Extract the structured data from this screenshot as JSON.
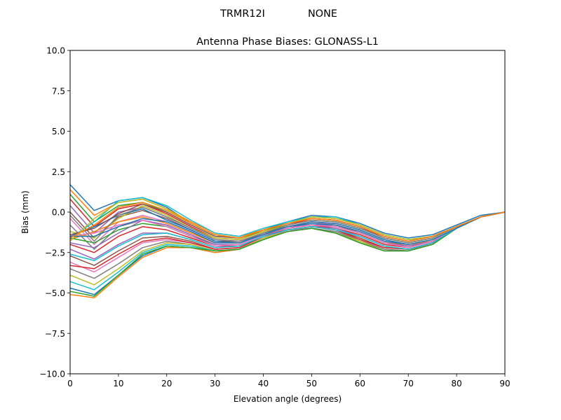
{
  "figure": {
    "suptitle_left": "TRMR12I",
    "suptitle_right": "NONE"
  },
  "chart_data": {
    "type": "line",
    "title": "Antenna Phase Biases: GLONASS-L1",
    "xlabel": "Elevation angle (degrees)",
    "ylabel": "Bias (mm)",
    "xlim": [
      0,
      90
    ],
    "ylim": [
      -10,
      10
    ],
    "xticks": [
      0,
      10,
      20,
      30,
      40,
      50,
      60,
      70,
      80,
      90
    ],
    "xtick_labels": [
      "0",
      "10",
      "20",
      "30",
      "40",
      "50",
      "60",
      "70",
      "80",
      "90"
    ],
    "yticks": [
      10,
      7.5,
      5,
      2.5,
      0,
      -2.5,
      -5,
      -7.5,
      -10
    ],
    "ytick_labels": [
      "10.0",
      "7.5",
      "5.0",
      "2.5",
      "0.0",
      "−2.5",
      "−5.0",
      "−7.5",
      "−10.0"
    ],
    "grid": false,
    "legend": "none",
    "colors": [
      "#1f77b4",
      "#ff7f0e",
      "#2ca02c",
      "#d62728",
      "#9467bd",
      "#8c564b",
      "#e377c2",
      "#7f7f7f",
      "#bcbd22",
      "#17becf"
    ],
    "x": [
      0,
      5,
      10,
      15,
      20,
      25,
      30,
      35,
      40,
      45,
      50,
      55,
      60,
      65,
      70,
      75,
      80,
      85,
      90
    ],
    "series": [
      {
        "values": [
          1.7,
          0.1,
          0.7,
          0.9,
          0.3,
          -0.7,
          -1.4,
          -1.6,
          -1.1,
          -0.6,
          -0.2,
          -0.3,
          -0.7,
          -1.3,
          -1.6,
          -1.4,
          -0.8,
          -0.2,
          0.0
        ]
      },
      {
        "values": [
          1.4,
          -0.2,
          0.6,
          0.8,
          0.2,
          -0.6,
          -1.3,
          -1.5,
          -1.1,
          -0.7,
          -0.3,
          -0.4,
          -0.8,
          -1.4,
          -1.7,
          -1.5,
          -0.9,
          -0.3,
          0.0
        ]
      },
      {
        "values": [
          1.1,
          -0.6,
          0.4,
          0.6,
          0.0,
          -0.8,
          -1.5,
          -1.6,
          -1.2,
          -0.7,
          -0.4,
          -0.5,
          -0.9,
          -1.5,
          -1.8,
          -1.5,
          -0.9,
          -0.3,
          0.0
        ]
      },
      {
        "values": [
          0.8,
          -0.9,
          0.2,
          0.5,
          -0.1,
          -0.9,
          -1.6,
          -1.7,
          -1.2,
          -0.8,
          -0.4,
          -0.5,
          -0.9,
          -1.6,
          -1.9,
          -1.6,
          -0.9,
          -0.3,
          0.0
        ]
      },
      {
        "values": [
          0.4,
          -1.3,
          0.0,
          0.3,
          -0.3,
          -1.0,
          -1.7,
          -1.8,
          -1.3,
          -0.8,
          -0.5,
          -0.6,
          -1.0,
          -1.6,
          -1.9,
          -1.6,
          -0.9,
          -0.3,
          0.0
        ]
      },
      {
        "values": [
          0.0,
          -1.6,
          -0.3,
          0.1,
          -0.4,
          -1.1,
          -1.8,
          -1.8,
          -1.3,
          -0.9,
          -0.6,
          -0.7,
          -1.1,
          -1.7,
          -2.0,
          -1.7,
          -1.0,
          -0.3,
          0.0
        ]
      },
      {
        "values": [
          -0.4,
          -2.0,
          -0.6,
          -0.2,
          -0.6,
          -1.2,
          -1.9,
          -1.9,
          -1.4,
          -0.9,
          -0.6,
          -0.8,
          -1.2,
          -1.8,
          -2.1,
          -1.7,
          -1.0,
          -0.3,
          0.0
        ]
      },
      {
        "values": [
          -0.8,
          -2.3,
          -0.9,
          -0.5,
          -0.8,
          -1.4,
          -2.0,
          -2.0,
          -1.4,
          -1.0,
          -0.7,
          -0.8,
          -1.3,
          -1.9,
          -2.1,
          -1.8,
          -1.0,
          -0.3,
          0.0
        ]
      },
      {
        "values": [
          -1.2,
          -1.6,
          -0.4,
          0.4,
          -0.2,
          -1.0,
          -1.6,
          -1.7,
          -1.2,
          -0.8,
          -0.5,
          -0.6,
          -1.0,
          -1.6,
          -1.9,
          -1.6,
          -0.9,
          -0.3,
          0.0
        ]
      },
      {
        "values": [
          -1.6,
          -0.6,
          0.7,
          0.9,
          0.4,
          -0.5,
          -1.3,
          -1.5,
          -1.0,
          -0.6,
          -0.3,
          -0.3,
          -0.8,
          -1.4,
          -1.7,
          -1.5,
          -0.9,
          -0.3,
          0.0
        ]
      },
      {
        "values": [
          -1.5,
          -0.9,
          -0.2,
          0.2,
          -0.5,
          -1.1,
          -1.8,
          -1.9,
          -1.3,
          -0.9,
          -0.6,
          -0.7,
          -1.1,
          -1.7,
          -2.0,
          -1.7,
          -1.0,
          -0.3,
          0.0
        ]
      },
      {
        "values": [
          -1.7,
          -1.2,
          -0.6,
          -0.3,
          -0.7,
          -1.3,
          -1.9,
          -1.9,
          -1.4,
          -0.9,
          -0.7,
          -0.8,
          -1.2,
          -1.8,
          -2.1,
          -1.7,
          -1.0,
          -0.3,
          0.0
        ]
      },
      {
        "values": [
          -1.6,
          -1.9,
          -1.1,
          -0.7,
          -0.9,
          -1.5,
          -2.0,
          -2.0,
          -1.4,
          -1.0,
          -0.8,
          -0.9,
          -1.3,
          -1.9,
          -2.2,
          -1.8,
          -1.0,
          -0.3,
          0.0
        ]
      },
      {
        "values": [
          -2.0,
          -2.5,
          -1.5,
          -0.9,
          -1.1,
          -1.6,
          -2.1,
          -2.1,
          -1.5,
          -1.0,
          -0.8,
          -1.0,
          -1.4,
          -2.0,
          -2.2,
          -1.8,
          -1.0,
          -0.3,
          0.0
        ]
      },
      {
        "values": [
          -2.3,
          -2.9,
          -2.0,
          -1.3,
          -1.3,
          -1.7,
          -2.2,
          -2.1,
          -1.5,
          -1.1,
          -0.9,
          -1.0,
          -1.5,
          -2.1,
          -2.3,
          -1.9,
          -1.0,
          -0.3,
          0.0
        ]
      },
      {
        "values": [
          -2.7,
          -3.3,
          -2.4,
          -1.6,
          -1.5,
          -1.8,
          -2.3,
          -2.2,
          -1.6,
          -1.1,
          -0.9,
          -1.1,
          -1.6,
          -2.2,
          -2.3,
          -1.9,
          -1.0,
          -0.3,
          0.0
        ]
      },
      {
        "values": [
          -3.1,
          -3.7,
          -2.8,
          -1.9,
          -1.7,
          -1.9,
          -2.3,
          -2.2,
          -1.6,
          -1.1,
          -1.0,
          -1.2,
          -1.7,
          -2.3,
          -2.4,
          -1.9,
          -1.0,
          -0.3,
          0.0
        ]
      },
      {
        "values": [
          -3.5,
          -4.1,
          -3.2,
          -2.2,
          -1.8,
          -2.0,
          -2.4,
          -2.3,
          -1.6,
          -1.2,
          -1.0,
          -1.2,
          -1.8,
          -2.3,
          -2.4,
          -2.0,
          -1.0,
          -0.3,
          0.0
        ]
      },
      {
        "values": [
          -3.9,
          -4.5,
          -3.5,
          -2.4,
          -1.9,
          -2.0,
          -2.4,
          -2.3,
          -1.6,
          -1.2,
          -1.0,
          -1.3,
          -1.8,
          -2.4,
          -2.4,
          -2.0,
          -1.0,
          -0.3,
          0.0
        ]
      },
      {
        "values": [
          -4.3,
          -4.8,
          -3.7,
          -2.5,
          -2.0,
          -2.1,
          -2.4,
          -2.3,
          -1.7,
          -1.2,
          -1.0,
          -1.3,
          -1.9,
          -2.4,
          -2.4,
          -2.0,
          -1.0,
          -0.3,
          0.0
        ]
      },
      {
        "values": [
          -4.7,
          -5.1,
          -3.9,
          -2.7,
          -2.1,
          -2.2,
          -2.5,
          -2.3,
          -1.7,
          -1.2,
          -1.0,
          -1.3,
          -1.9,
          -2.4,
          -2.4,
          -2.0,
          -1.0,
          -0.3,
          0.0
        ]
      },
      {
        "values": [
          -5.1,
          -5.3,
          -4.0,
          -2.8,
          -2.2,
          -2.2,
          -2.5,
          -2.3,
          -1.7,
          -1.2,
          -1.0,
          -1.3,
          -1.9,
          -2.4,
          -2.4,
          -2.0,
          -1.0,
          -0.3,
          0.0
        ]
      },
      {
        "values": [
          -4.9,
          -5.2,
          -3.9,
          -2.6,
          -2.1,
          -2.2,
          -2.4,
          -2.3,
          -1.7,
          -1.2,
          -1.0,
          -1.3,
          -1.9,
          -2.4,
          -2.4,
          -2.0,
          -1.0,
          -0.3,
          0.0
        ]
      },
      {
        "values": [
          -3.3,
          -3.5,
          -2.6,
          -1.8,
          -1.6,
          -1.9,
          -2.3,
          -2.2,
          -1.5,
          -1.1,
          -0.9,
          -1.1,
          -1.7,
          -2.2,
          -2.3,
          -1.9,
          -1.0,
          -0.3,
          0.0
        ]
      },
      {
        "values": [
          -1.9,
          -2.2,
          -1.3,
          -0.5,
          -0.8,
          -1.4,
          -2.0,
          -2.0,
          -1.4,
          -1.0,
          -0.7,
          -0.9,
          -1.3,
          -1.9,
          -2.1,
          -1.8,
          -1.0,
          -0.3,
          0.0
        ]
      },
      {
        "values": [
          -1.4,
          -1.0,
          -0.1,
          0.5,
          0.0,
          -0.8,
          -1.5,
          -1.6,
          -1.1,
          -0.7,
          -0.4,
          -0.5,
          -0.9,
          -1.5,
          -1.8,
          -1.5,
          -0.9,
          -0.3,
          0.0
        ]
      },
      {
        "values": [
          -1.5,
          -1.3,
          -0.8,
          -0.5,
          -0.9,
          -1.5,
          -2.1,
          -2.0,
          -1.4,
          -1.0,
          -0.8,
          -0.9,
          -1.3,
          -1.9,
          -2.2,
          -1.8,
          -1.0,
          -0.3,
          0.0
        ]
      },
      {
        "values": [
          -0.2,
          -1.8,
          -0.2,
          0.3,
          -0.3,
          -1.0,
          -1.7,
          -1.8,
          -1.3,
          -0.8,
          -0.5,
          -0.6,
          -1.0,
          -1.6,
          -1.9,
          -1.6,
          -0.9,
          -0.3,
          0.0
        ]
      },
      {
        "values": [
          -1.8,
          -0.4,
          0.6,
          0.8,
          0.2,
          -0.7,
          -1.4,
          -1.6,
          -1.1,
          -0.7,
          -0.3,
          -0.4,
          -0.8,
          -1.4,
          -1.7,
          -1.5,
          -0.9,
          -0.3,
          0.0
        ]
      },
      {
        "values": [
          -2.6,
          -3.0,
          -2.1,
          -1.4,
          -1.3,
          -1.7,
          -2.2,
          -2.1,
          -1.5,
          -1.1,
          -0.9,
          -1.1,
          -1.5,
          -2.1,
          -2.3,
          -1.9,
          -1.0,
          -0.3,
          0.0
        ]
      },
      {
        "values": [
          -1.5,
          -1.5,
          -0.9,
          -0.4,
          -0.6,
          -1.2,
          -1.9,
          -1.9,
          -1.4,
          -0.9,
          -0.7,
          -0.8,
          -1.2,
          -1.8,
          -2.0,
          -1.7,
          -1.0,
          -0.3,
          0.0
        ]
      },
      {
        "values": [
          -1.6,
          -0.8,
          0.3,
          0.6,
          0.1,
          -0.7,
          -1.4,
          -1.6,
          -1.1,
          -0.7,
          -0.4,
          -0.5,
          -0.9,
          -1.5,
          -1.8,
          -1.5,
          -0.9,
          -0.3,
          0.0
        ]
      }
    ]
  }
}
